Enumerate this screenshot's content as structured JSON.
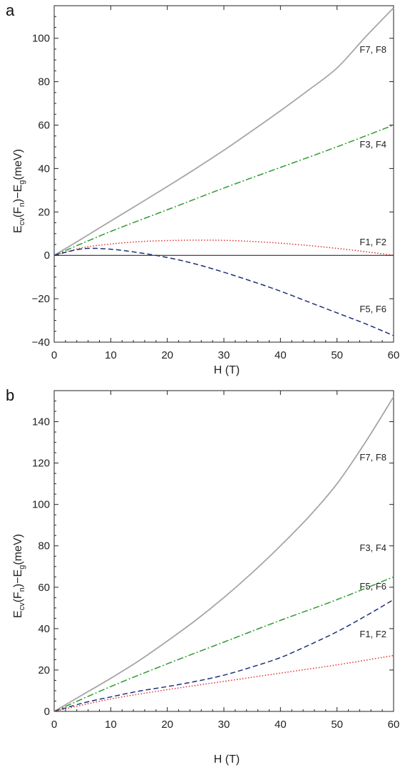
{
  "chart_data": [
    {
      "type": "line",
      "panel": "a",
      "xlabel": "H (T)",
      "ylabel": "E_cv(F_n)−E_g(meV)",
      "xlim": [
        0,
        60
      ],
      "ylim": [
        -40,
        115
      ],
      "xticks": [
        0,
        10,
        20,
        30,
        40,
        50,
        60
      ],
      "yticks": [
        -40,
        -20,
        0,
        20,
        40,
        60,
        80,
        100
      ],
      "zero_line": true,
      "grid": false,
      "series": [
        {
          "name": "F7, F8",
          "color": "#a6a6a6",
          "style": "solid",
          "x": [
            0,
            5,
            10,
            15,
            20,
            25,
            30,
            35,
            40,
            45,
            50,
            55,
            60
          ],
          "y": [
            0,
            7.8,
            15.8,
            23.7,
            31.7,
            39.9,
            48.4,
            57.4,
            66.6,
            76.2,
            86.3,
            100.5,
            114
          ]
        },
        {
          "name": "F3, F4",
          "color": "#2f9a2f",
          "style": "dashdot",
          "x": [
            0,
            10,
            20,
            30,
            40,
            50,
            60
          ],
          "y": [
            0,
            11,
            21,
            31,
            40.5,
            50,
            60
          ]
        },
        {
          "name": "F1, F2",
          "color": "#e03030",
          "style": "dotted",
          "x": [
            0,
            5,
            10,
            15,
            20,
            25,
            30,
            35,
            40,
            45,
            50,
            55,
            60
          ],
          "y": [
            0,
            3.5,
            5.2,
            6.3,
            6.8,
            7,
            6.9,
            6.4,
            5.6,
            4.5,
            3.2,
            1.7,
            0
          ]
        },
        {
          "name": "F5, F6",
          "color": "#1f2f7a",
          "style": "dashed",
          "x": [
            0,
            5,
            10,
            15,
            20,
            25,
            30,
            35,
            40,
            45,
            50,
            55,
            60
          ],
          "y": [
            0,
            3,
            2.8,
            1.2,
            -1,
            -4,
            -7.8,
            -12,
            -16.5,
            -21.5,
            -26.5,
            -31.5,
            -37
          ]
        }
      ]
    },
    {
      "type": "line",
      "panel": "b",
      "xlabel": "H (T)",
      "ylabel": "E_cv(F_n)−E_g(meV)",
      "xlim": [
        0,
        60
      ],
      "ylim": [
        0,
        155
      ],
      "xticks": [
        0,
        10,
        20,
        30,
        40,
        50,
        60
      ],
      "yticks": [
        0,
        20,
        40,
        60,
        80,
        100,
        120,
        140
      ],
      "zero_line": false,
      "grid": false,
      "series": [
        {
          "name": "F7, F8",
          "color": "#a6a6a6",
          "style": "solid",
          "x": [
            0,
            5,
            10,
            15,
            20,
            25,
            30,
            35,
            40,
            45,
            50,
            55,
            60
          ],
          "y": [
            0,
            8,
            16,
            24.5,
            34,
            44,
            55,
            67,
            80,
            94,
            110,
            130,
            152
          ]
        },
        {
          "name": "F3, F4",
          "color": "#2f9a2f",
          "style": "dashdot",
          "x": [
            0,
            10,
            20,
            30,
            40,
            50,
            60
          ],
          "y": [
            0,
            12,
            23,
            33.5,
            44,
            54,
            65
          ]
        },
        {
          "name": "F5, F6",
          "color": "#1f2f7a",
          "style": "dashed",
          "x": [
            0,
            5,
            10,
            15,
            20,
            25,
            30,
            35,
            40,
            45,
            50,
            55,
            60
          ],
          "y": [
            0,
            4,
            7,
            9.8,
            12,
            14.5,
            17.5,
            21.5,
            26,
            32,
            38.5,
            46,
            54
          ]
        },
        {
          "name": "F1, F2",
          "color": "#e03030",
          "style": "dotted",
          "x": [
            0,
            10,
            20,
            30,
            40,
            50,
            60
          ],
          "y": [
            0,
            6,
            10.5,
            14.5,
            18.5,
            22.5,
            27
          ]
        }
      ]
    }
  ],
  "panels": [
    {
      "letter": "a",
      "xlabel": "H (T)",
      "ylabel": {
        "main": "E",
        "sub1": "cv",
        "mid": "(F",
        "sub2": "n",
        "rest": ")−E",
        "sub3": "g",
        "end": "(meV)"
      },
      "curve_labels": [
        "F7, F8",
        "F3, F4",
        "F1, F2",
        "F5, F6"
      ]
    },
    {
      "letter": "b",
      "xlabel": "H (T)",
      "ylabel": {
        "main": "E",
        "sub1": "cv",
        "mid": "(F",
        "sub2": "n",
        "rest": ")−E",
        "sub3": "g",
        "end": "(meV)"
      },
      "curve_labels": [
        "F7, F8",
        "F3, F4",
        "F5, F6",
        "F1, F2"
      ]
    }
  ]
}
